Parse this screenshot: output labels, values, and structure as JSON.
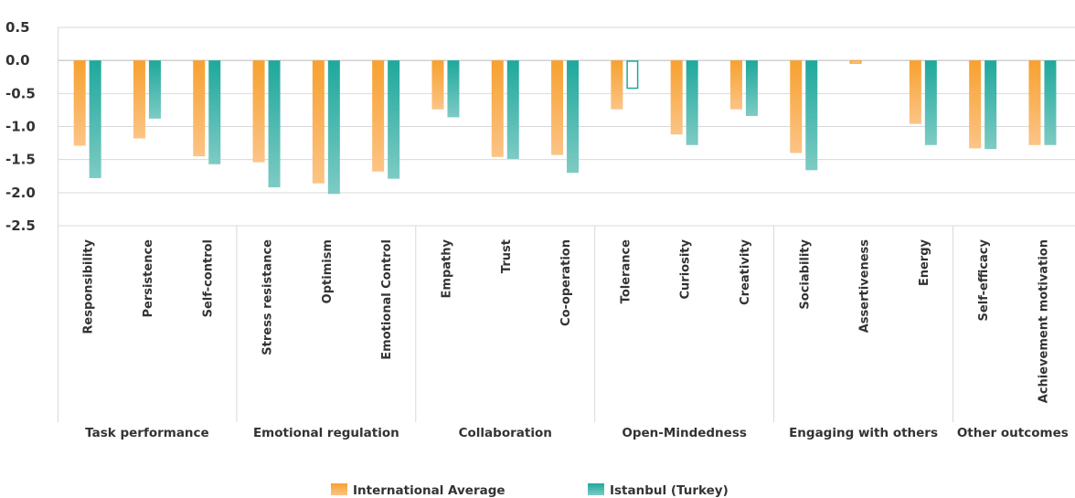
{
  "chart_data": {
    "type": "bar",
    "title": "",
    "xlabel": "",
    "ylabel": "",
    "ylim": [
      -2.5,
      0.5
    ],
    "yticks": [
      0.5,
      0.0,
      -0.5,
      -1.0,
      -1.5,
      -2.0,
      -2.5
    ],
    "ytick_labels": [
      "0.5",
      "0.0",
      "-0.5",
      "-1.0",
      "-1.5",
      "-2.0",
      "-2.5"
    ],
    "grid": true,
    "legend": "bottom",
    "categories": [
      "Responsibility",
      "Persistence",
      "Self-control",
      "Stress resistance",
      "Optimism",
      "Emotional Control",
      "Empathy",
      "Trust",
      "Co-operation",
      "Tolerance",
      "Curiosity",
      "Creativity",
      "Sociability",
      "Assertiveness",
      "Energy",
      "Self-efficacy",
      "Achievement motivation"
    ],
    "groups": [
      {
        "label": "Task performance",
        "size": 3
      },
      {
        "label": "Emotional regulation",
        "size": 3
      },
      {
        "label": "Collaboration",
        "size": 3
      },
      {
        "label": "Open-Mindedness",
        "size": 3
      },
      {
        "label": "Engaging with others",
        "size": 3
      },
      {
        "label": "Other outcomes",
        "size": 2
      }
    ],
    "series": [
      {
        "name": "International Average",
        "color": "#f7a130",
        "values": [
          -1.29,
          -1.18,
          -1.45,
          -1.54,
          -1.86,
          -1.68,
          -0.74,
          -1.46,
          -1.43,
          -0.74,
          -1.12,
          -0.74,
          -1.4,
          -0.05,
          -0.96,
          -1.33,
          -1.28
        ],
        "hollow": [
          false,
          false,
          false,
          false,
          false,
          false,
          false,
          false,
          false,
          false,
          false,
          false,
          false,
          true,
          false,
          false,
          false
        ]
      },
      {
        "name": "Istanbul (Turkey)",
        "color": "#1fa89c",
        "values": [
          -1.78,
          -0.88,
          -1.57,
          -1.92,
          -2.02,
          -1.79,
          -0.86,
          -1.49,
          -1.7,
          -0.43,
          -1.28,
          -0.84,
          -1.66,
          0,
          -1.28,
          -1.34,
          -1.28
        ],
        "hollow": [
          false,
          false,
          false,
          false,
          false,
          false,
          false,
          false,
          false,
          true,
          false,
          false,
          false,
          false,
          false,
          false,
          false
        ]
      }
    ]
  }
}
